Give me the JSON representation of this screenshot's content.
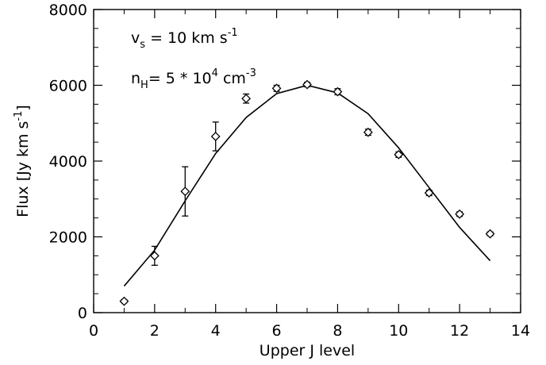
{
  "chart_data": {
    "type": "scatter",
    "xlabel": "Upper J level",
    "ylabel": "Flux [Jy km s",
    "ylabel_sup": "-1",
    "ylabel_end": "]",
    "xlim": [
      0,
      14
    ],
    "ylim": [
      0,
      8000
    ],
    "x_ticks": [
      0,
      2,
      4,
      6,
      8,
      10,
      12,
      14
    ],
    "y_ticks": [
      0,
      2000,
      4000,
      6000,
      8000
    ],
    "x_tick_labels": [
      "0",
      "2",
      "4",
      "6",
      "8",
      "10",
      "12",
      "14"
    ],
    "y_tick_labels": [
      "0",
      "2000",
      "4000",
      "6000",
      "8000"
    ],
    "grid": false,
    "annotations": {
      "line1": {
        "v": "v",
        "v_sub": "s",
        "mid": " = 10 km s",
        "sup": "-1"
      },
      "line2": {
        "n": "n",
        "n_sub": "H",
        "mid": "= 5 * 10",
        "sup1": "4",
        "unit": " cm",
        "sup2": "-3"
      }
    },
    "series": [
      {
        "kind": "points_with_errorbars",
        "marker": "diamond",
        "x": [
          1,
          2,
          3,
          4,
          5,
          6,
          7,
          8,
          9,
          10,
          11,
          12,
          13
        ],
        "y": [
          300,
          1500,
          3200,
          4650,
          5650,
          5920,
          6020,
          5830,
          4760,
          4170,
          3160,
          2600,
          2080
        ],
        "err": [
          40,
          250,
          650,
          380,
          120,
          80,
          60,
          80,
          80,
          70,
          70,
          60,
          50
        ]
      },
      {
        "kind": "model_line",
        "x": [
          1,
          2,
          3,
          4,
          5,
          6,
          7,
          8,
          9,
          10,
          11,
          12,
          13
        ],
        "y": [
          700,
          1650,
          2950,
          4200,
          5150,
          5780,
          6000,
          5800,
          5250,
          4350,
          3300,
          2250,
          1370
        ]
      }
    ]
  }
}
